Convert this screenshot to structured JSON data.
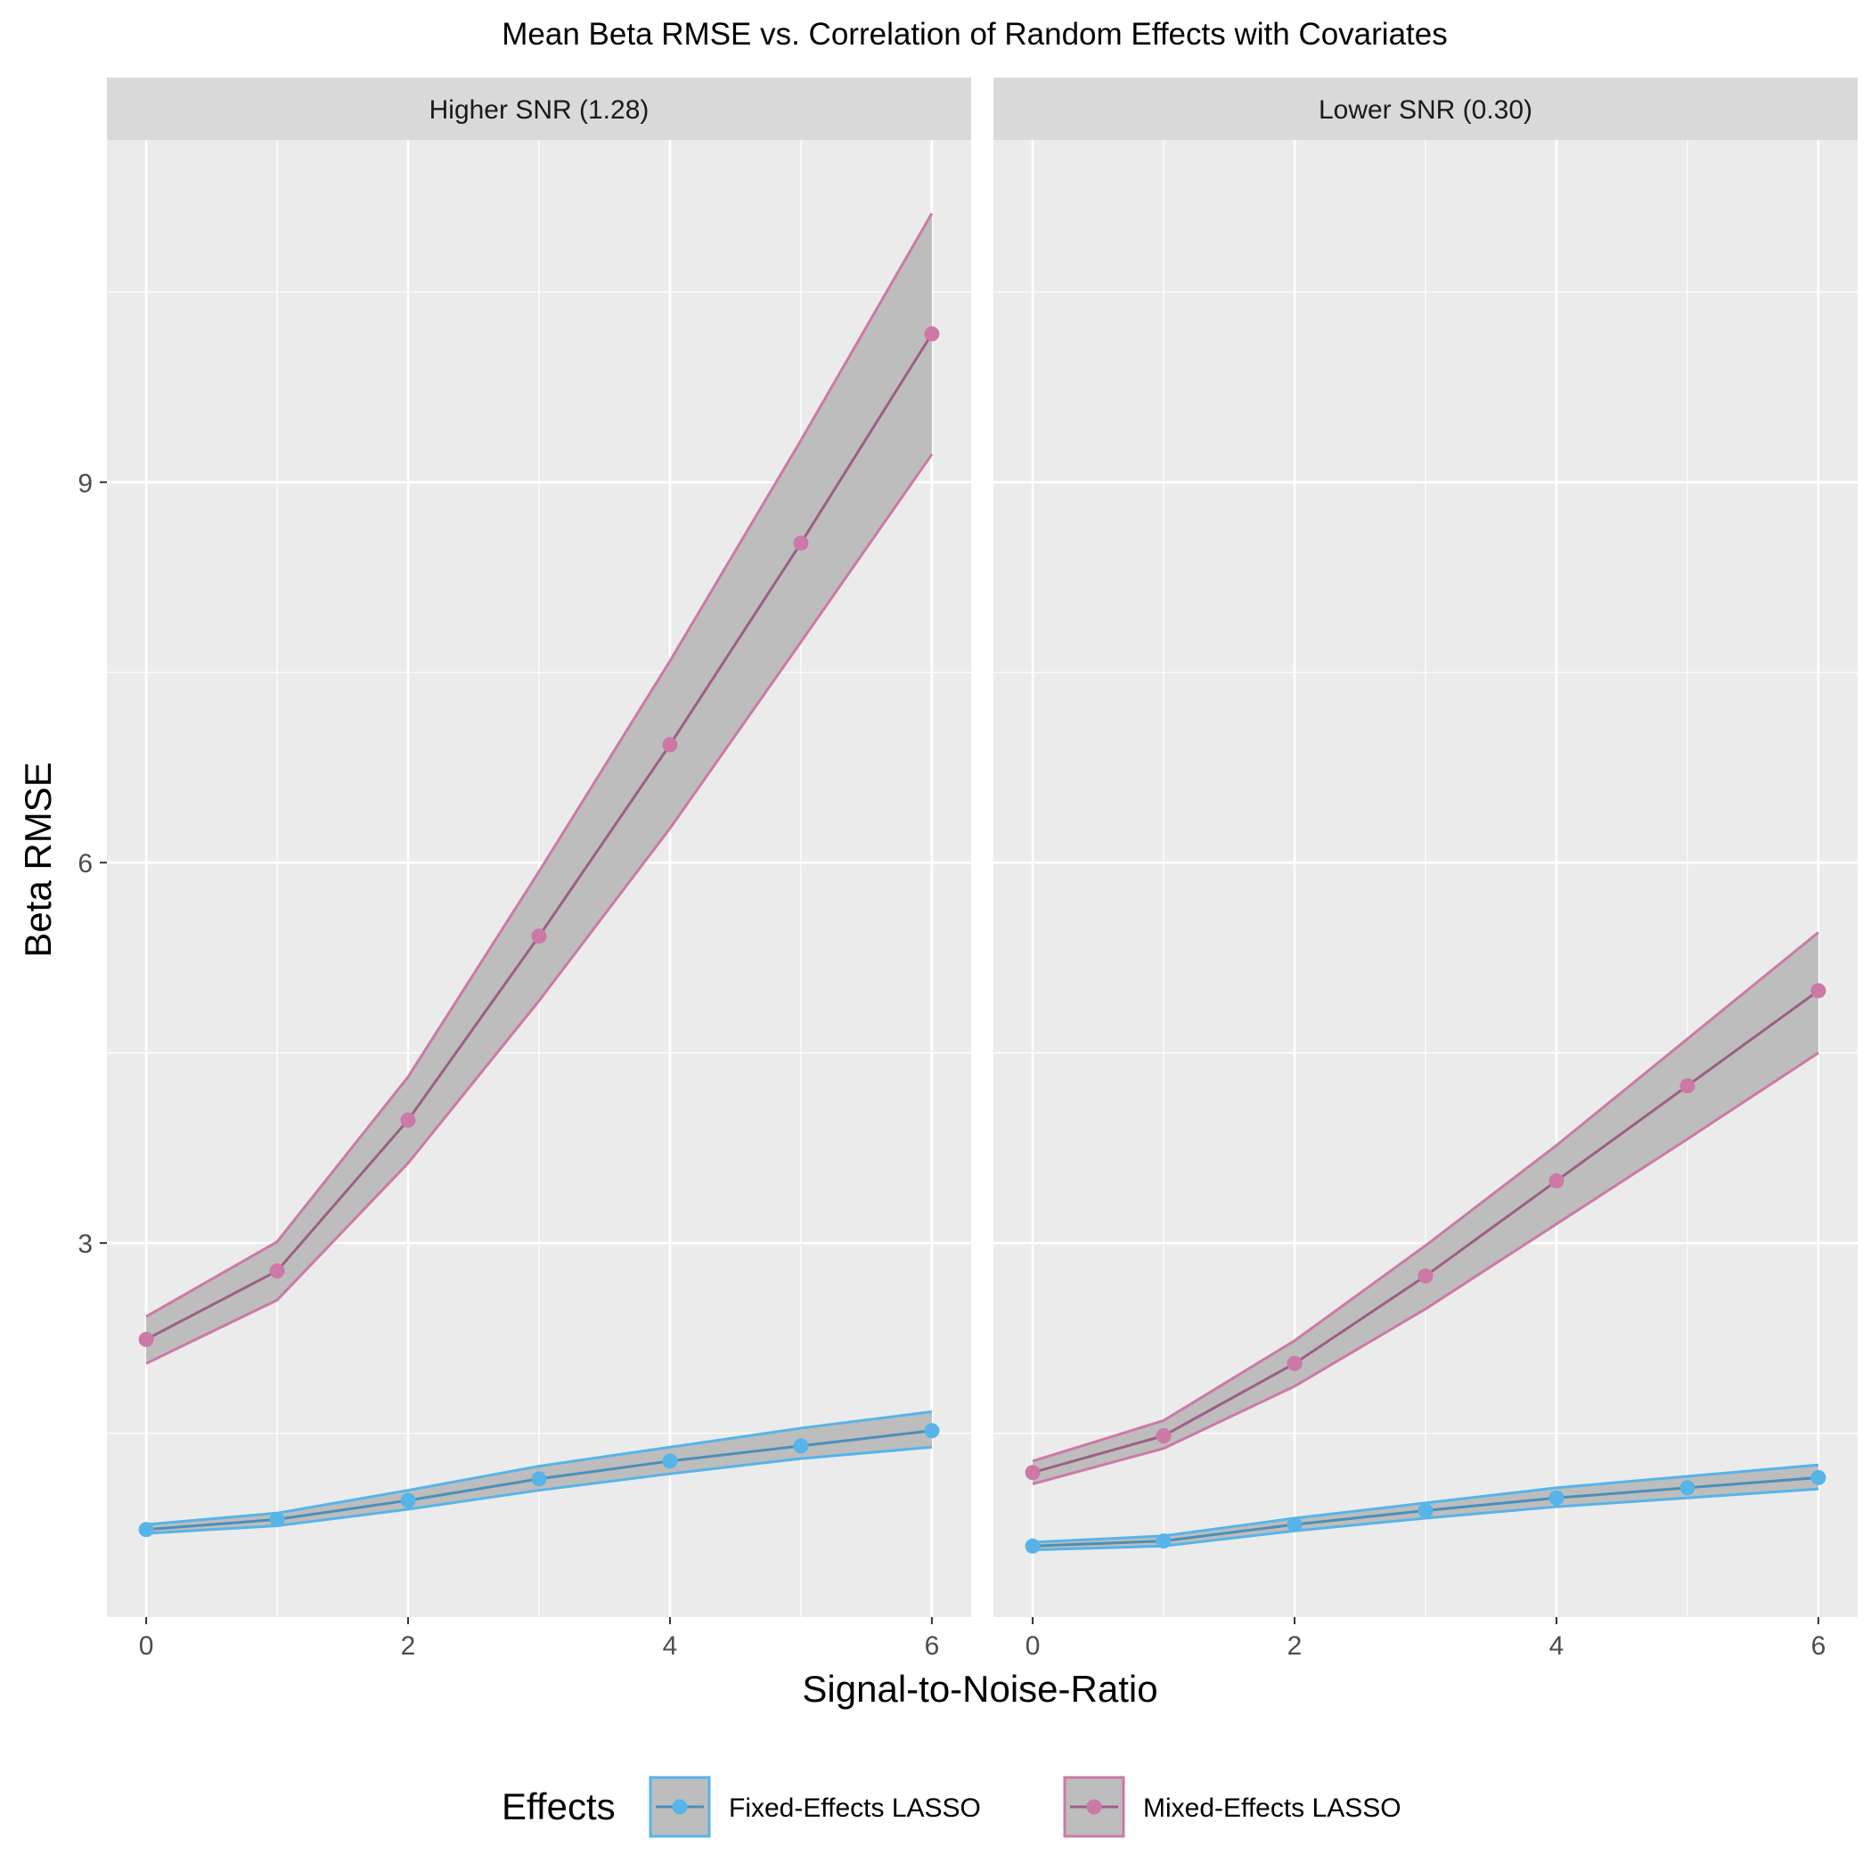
{
  "chart_data": {
    "type": "line",
    "title": "Mean Beta RMSE vs. Correlation of Random Effects with Covariates",
    "xlabel": "Signal-to-Noise-Ratio",
    "ylabel": "Beta RMSE",
    "xlim": [
      -0.3,
      6.3
    ],
    "ylim": [
      0.05,
      11.7
    ],
    "x_ticks": [
      0,
      2,
      4,
      6
    ],
    "x_ticks_minor": [
      1,
      3,
      5
    ],
    "y_ticks": [
      3,
      6,
      9
    ],
    "y_ticks_minor": [
      1.5,
      4.5,
      7.5,
      10.5
    ],
    "legend": {
      "title": "Effects",
      "position": "bottom",
      "entries": [
        "Fixed-Effects LASSO",
        "Mixed-Effects LASSO"
      ]
    },
    "colors": {
      "fixed": "#56B4E9",
      "fixed_line": "#4b8fb8",
      "mixed": "#CC79A7",
      "mixed_line": "#9b5f84",
      "ribbon_fill": "#bdbdbd",
      "panel_bg": "#ebebeb",
      "strip_bg": "#d9d9d9",
      "grid": "#ffffff"
    },
    "x": [
      0,
      1,
      2,
      3,
      4,
      5,
      6
    ],
    "panels": [
      {
        "label": "Higher SNR (1.28)",
        "series": [
          {
            "name": "Fixed-Effects LASSO",
            "key": "fixed",
            "values": [
              0.74,
              0.82,
              0.97,
              1.14,
              1.28,
              1.4,
              1.52
            ],
            "lower": [
              0.71,
              0.77,
              0.9,
              1.05,
              1.18,
              1.3,
              1.39
            ],
            "upper": [
              0.78,
              0.87,
              1.05,
              1.24,
              1.39,
              1.54,
              1.67
            ]
          },
          {
            "name": "Mixed-Effects LASSO",
            "key": "mixed",
            "values": [
              2.24,
              2.78,
              3.97,
              5.42,
              6.93,
              8.52,
              10.17
            ],
            "lower": [
              2.05,
              2.55,
              3.63,
              4.91,
              6.27,
              7.74,
              9.22
            ],
            "upper": [
              2.42,
              3.01,
              4.31,
              5.93,
              7.59,
              9.33,
              11.12
            ]
          }
        ]
      },
      {
        "label": "Lower SNR (0.30)",
        "series": [
          {
            "name": "Fixed-Effects LASSO",
            "key": "fixed",
            "values": [
              0.61,
              0.65,
              0.78,
              0.89,
              0.99,
              1.07,
              1.15
            ],
            "lower": [
              0.58,
              0.61,
              0.73,
              0.83,
              0.92,
              0.99,
              1.06
            ],
            "upper": [
              0.64,
              0.69,
              0.83,
              0.95,
              1.07,
              1.16,
              1.25
            ]
          },
          {
            "name": "Mixed-Effects LASSO",
            "key": "mixed",
            "values": [
              1.19,
              1.48,
              2.05,
              2.74,
              3.49,
              4.24,
              4.99
            ],
            "lower": [
              1.1,
              1.38,
              1.87,
              2.48,
              3.15,
              3.82,
              4.5
            ],
            "upper": [
              1.28,
              1.6,
              2.23,
              2.98,
              3.77,
              4.61,
              5.45
            ]
          }
        ]
      }
    ]
  }
}
